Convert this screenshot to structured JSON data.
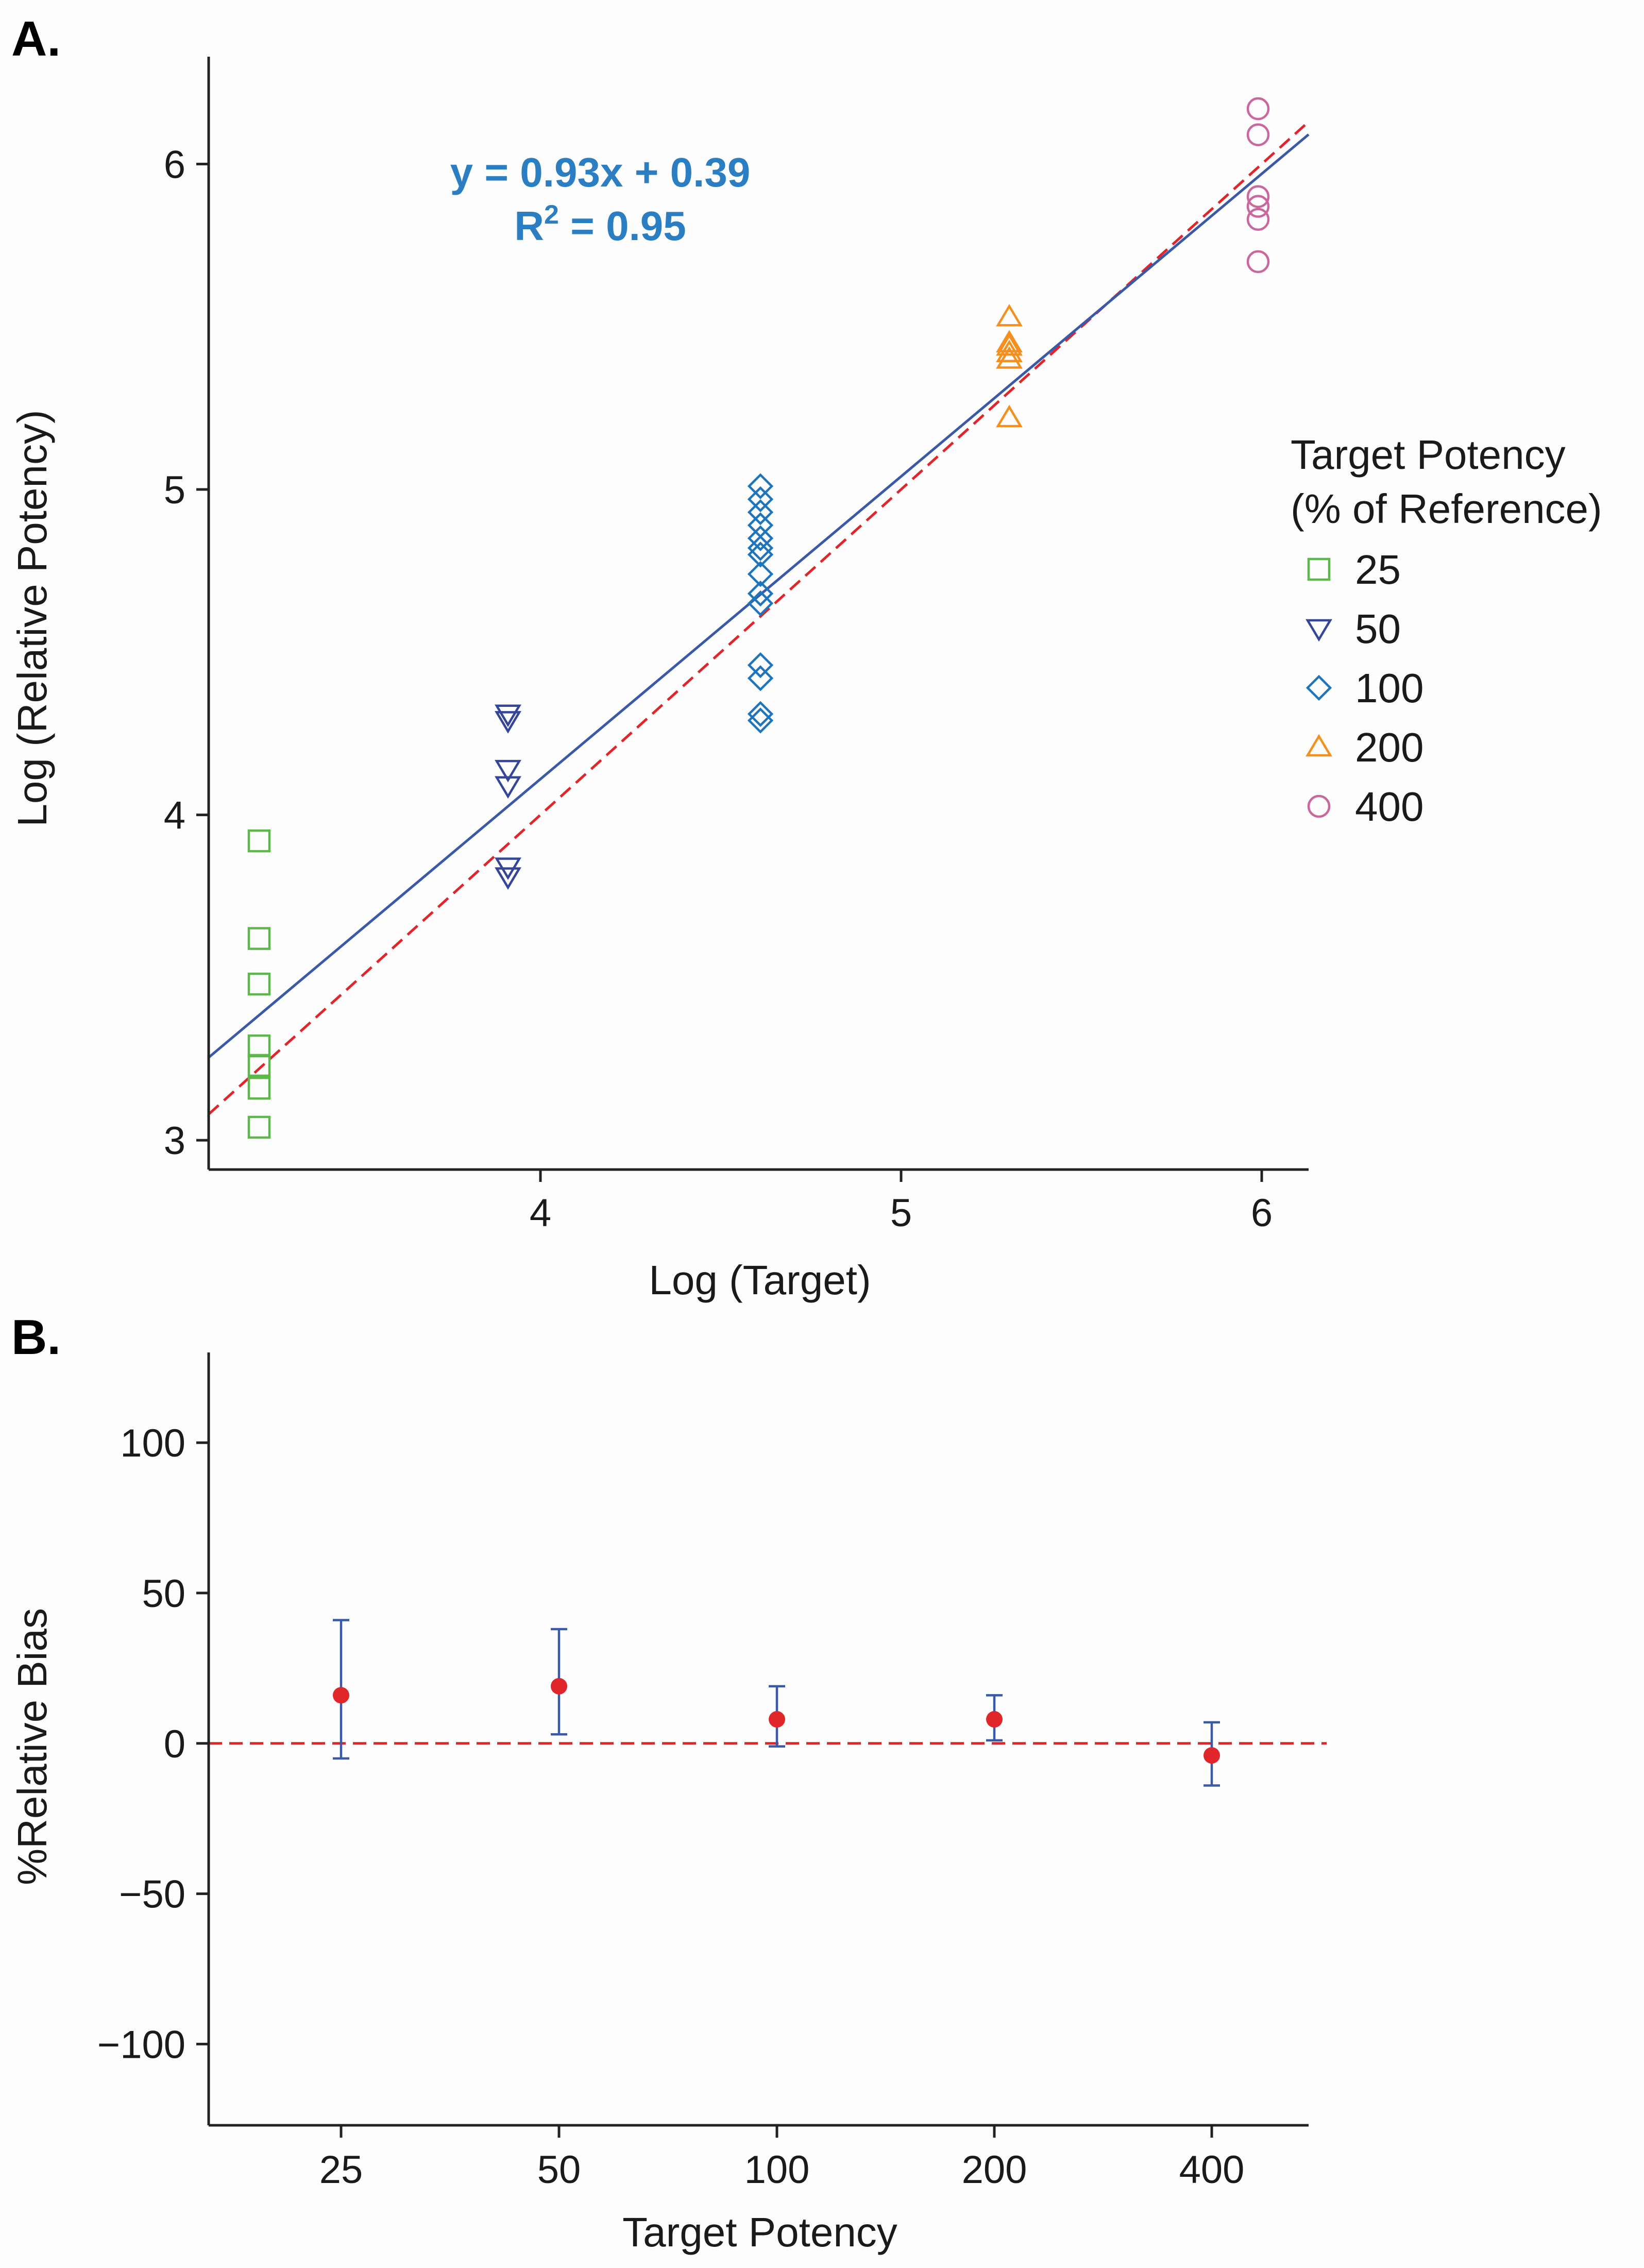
{
  "chart_data": [
    {
      "type": "scatter",
      "panel_label": "A.",
      "xlabel": "Log (Target)",
      "ylabel": "Log (Relative Potency)",
      "xlim": [
        3.08,
        6.13
      ],
      "ylim": [
        2.91,
        6.33
      ],
      "x_ticks": [
        4,
        5,
        6
      ],
      "x_tick_labels": [
        "4",
        "5",
        "6"
      ],
      "y_ticks": [
        3,
        4,
        5,
        6
      ],
      "y_tick_labels": [
        "3",
        "4",
        "5",
        "6"
      ],
      "equation": "y = 0.93x + 0.39",
      "r_squared_label": "R",
      "r_squared_exponent": "2",
      "r_squared_value": " = 0.95",
      "equation_color": "#2b7ec1",
      "fit_line": {
        "slope": 0.93,
        "intercept": 0.39,
        "color": "#3a59a7",
        "style": "solid"
      },
      "identity_line": {
        "slope": 1,
        "intercept": 0,
        "color": "#e0262a",
        "style": "dashed"
      },
      "legend_title_line1": "Target Potency",
      "legend_title_line2": "(% of Reference)",
      "series": [
        {
          "name": "25",
          "marker": "square",
          "color": "#5cb848",
          "x": 3.22,
          "values": [
            3.92,
            3.62,
            3.48,
            3.29,
            3.23,
            3.16,
            3.04
          ]
        },
        {
          "name": "50",
          "marker": "triangle-down",
          "color": "#34459a",
          "x": 3.91,
          "values": [
            4.31,
            4.29,
            4.14,
            4.09,
            3.84,
            3.81
          ]
        },
        {
          "name": "100",
          "marker": "diamond",
          "color": "#1e75bb",
          "x": 4.61,
          "values": [
            5.01,
            4.97,
            4.93,
            4.89,
            4.85,
            4.82,
            4.8,
            4.74,
            4.68,
            4.65,
            4.46,
            4.42,
            4.31,
            4.29
          ]
        },
        {
          "name": "200",
          "marker": "triangle-up",
          "color": "#f5901e",
          "x": 5.3,
          "values": [
            5.53,
            5.45,
            5.44,
            5.42,
            5.4,
            5.22
          ]
        },
        {
          "name": "400",
          "marker": "circle",
          "color": "#c9679e",
          "x": 5.99,
          "values": [
            6.17,
            6.09,
            5.9,
            5.87,
            5.83,
            5.7
          ]
        }
      ]
    },
    {
      "type": "scatter",
      "panel_label": "B.",
      "xlabel": "Target Potency",
      "ylabel": "%Relative Bias",
      "categories": [
        "25",
        "50",
        "100",
        "200",
        "400"
      ],
      "ylim": [
        -127,
        130
      ],
      "y_ticks": [
        -100,
        -50,
        0,
        50,
        100
      ],
      "y_tick_labels": [
        "−100",
        "−50",
        "0",
        "50",
        "100"
      ],
      "reference_line": {
        "y": 0,
        "color": "#e0262a",
        "style": "dashed"
      },
      "point_color": "#e0262a",
      "errorbar_color": "#3a59a7",
      "series": [
        {
          "name": "%Relative Bias",
          "values": [
            16,
            19,
            8,
            8,
            -4
          ],
          "lower": [
            -5,
            3,
            -1,
            1,
            -14
          ],
          "upper": [
            41,
            38,
            19,
            16,
            7
          ]
        }
      ]
    }
  ]
}
